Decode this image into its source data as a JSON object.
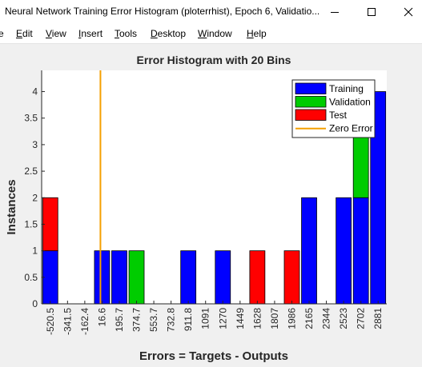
{
  "window": {
    "title": "Neural Network Training Error Histogram (ploterrhist), Epoch 6, Validatio...",
    "minimize_glyph": "—",
    "maximize_glyph": "☐",
    "close_glyph": "✕"
  },
  "menu": {
    "items": [
      {
        "label": "e",
        "accel": ""
      },
      {
        "label": "dit",
        "accel": "E"
      },
      {
        "label": "iew",
        "accel": "V"
      },
      {
        "label": "nsert",
        "accel": "I"
      },
      {
        "label": "ools",
        "accel": "T"
      },
      {
        "label": "esktop",
        "accel": "D"
      },
      {
        "label": "indow",
        "accel": "W"
      },
      {
        "label": "elp",
        "accel": "H"
      }
    ]
  },
  "colors": {
    "training": "#0000ff",
    "validation": "#00cc00",
    "test": "#ff0000",
    "zero_error": "#f5a000",
    "axes_bg": "#ffffff",
    "figure_bg": "#f0f0f0"
  },
  "chart_data": {
    "type": "bar",
    "stacked": true,
    "title": "Error Histogram with 20 Bins",
    "xlabel": "Errors = Targets - Outputs",
    "ylabel": "Instances",
    "ylim": [
      0,
      4.4
    ],
    "yticks": [
      0,
      0.5,
      1,
      1.5,
      2,
      2.5,
      3,
      3.5,
      4
    ],
    "ytick_labels": [
      "0",
      "0.5",
      "1",
      "1.5",
      "2",
      "2.5",
      "3",
      "3.5",
      "4"
    ],
    "categories": [
      "-520.5",
      "-341.5",
      "-162.4",
      "16.6",
      "195.7",
      "374.7",
      "553.7",
      "732.8",
      "911.8",
      "1091",
      "1270",
      "1449",
      "1628",
      "1807",
      "1986",
      "2165",
      "2344",
      "2523",
      "2702",
      "2881"
    ],
    "series": [
      {
        "name": "Training",
        "values": [
          1,
          0,
          0,
          1,
          1,
          0,
          0,
          0,
          1,
          0,
          1,
          0,
          0,
          0,
          0,
          2,
          0,
          2,
          2,
          4
        ]
      },
      {
        "name": "Validation",
        "values": [
          0,
          0,
          0,
          0,
          0,
          1,
          0,
          0,
          0,
          0,
          0,
          0,
          0,
          0,
          0,
          0,
          0,
          0,
          2,
          0
        ]
      },
      {
        "name": "Test",
        "values": [
          1,
          0,
          0,
          0,
          0,
          0,
          0,
          0,
          0,
          0,
          0,
          0,
          1,
          0,
          1,
          0,
          0,
          0,
          0,
          0
        ]
      }
    ],
    "zero_error_line": {
      "name": "Zero Error",
      "x": 0
    },
    "legend": [
      "Training",
      "Validation",
      "Test",
      "Zero Error"
    ],
    "legend_position": "top-right"
  }
}
